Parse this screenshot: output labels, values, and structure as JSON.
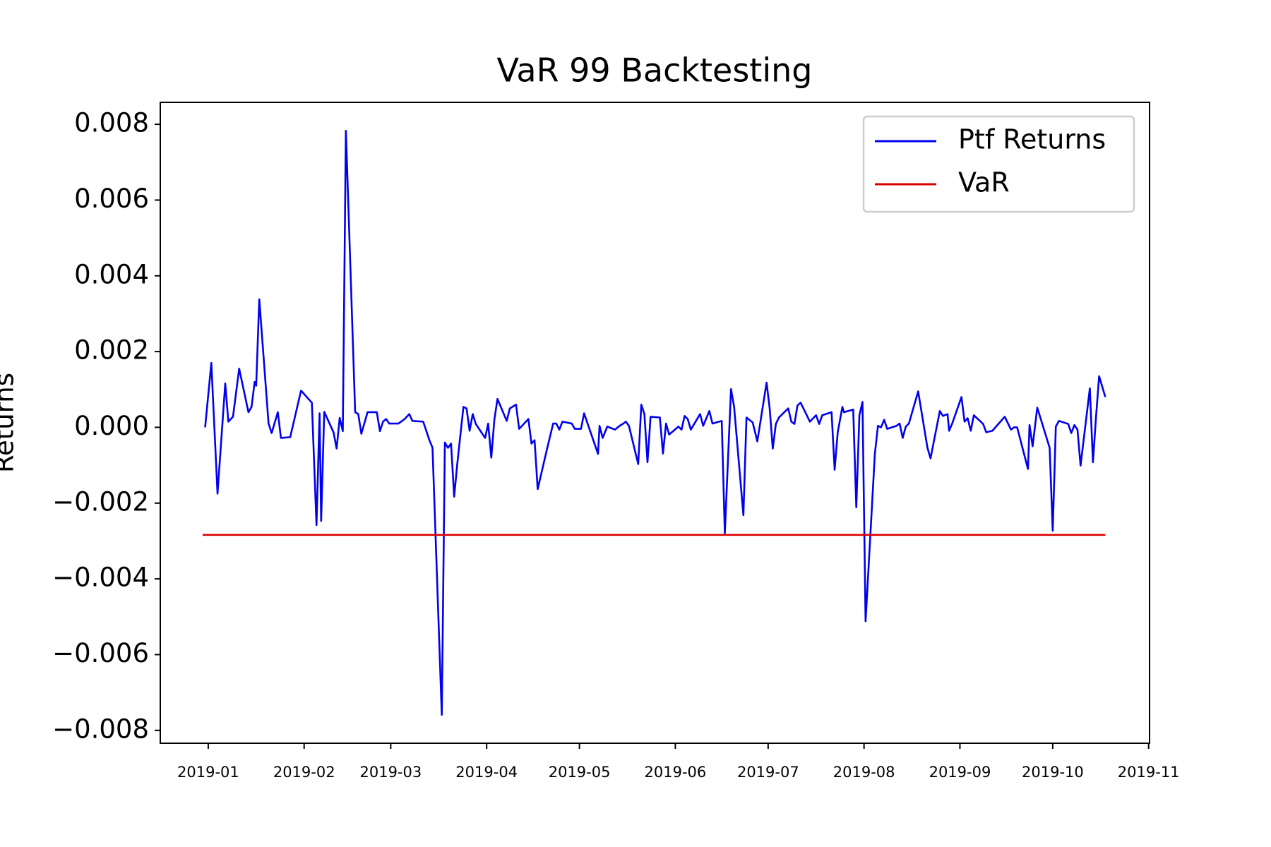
{
  "chart_data": {
    "type": "line",
    "title": "VaR 99 Backtesting",
    "y_label": "Returns",
    "xlim": [
      -15.5,
      304.3
    ],
    "xticks": [
      {
        "value": 0,
        "label": "2019-01"
      },
      {
        "value": 31,
        "label": "2019-02"
      },
      {
        "value": 59,
        "label": "2019-03"
      },
      {
        "value": 90,
        "label": "2019-04"
      },
      {
        "value": 120,
        "label": "2019-05"
      },
      {
        "value": 151,
        "label": "2019-06"
      },
      {
        "value": 181,
        "label": "2019-07"
      },
      {
        "value": 212,
        "label": "2019-08"
      },
      {
        "value": 243,
        "label": "2019-09"
      },
      {
        "value": 273,
        "label": "2019-10"
      },
      {
        "value": 304,
        "label": "2019-11"
      }
    ],
    "ylim": [
      -0.00834,
      0.00858
    ],
    "yticks": [
      {
        "value": -0.008,
        "label": "−0.008"
      },
      {
        "value": -0.006,
        "label": "−0.006"
      },
      {
        "value": -0.004,
        "label": "−0.004"
      },
      {
        "value": -0.002,
        "label": "−0.002"
      },
      {
        "value": 0,
        "label": "0.000"
      },
      0.002,
      0.004,
      0.006,
      0.008
    ],
    "legend": "upper right",
    "series": [
      {
        "name": "Ptf Returns",
        "color": "#0000ee",
        "x": [
          -1,
          1,
          3,
          5.5,
          6.5,
          8,
          10,
          13,
          14,
          15,
          15.5,
          16.5,
          19.5,
          20.5,
          22.5,
          23.5,
          26.5,
          30,
          33.5,
          35,
          36,
          36.5,
          37.5,
          40.5,
          41.5,
          42.5,
          43.5,
          44.5,
          47.5,
          48.5,
          49.5,
          51.5,
          54.5,
          55.5,
          56.5,
          57.5,
          58.5,
          61.5,
          63.5,
          65,
          66,
          69.5,
          71.5,
          72.5,
          75.5,
          76.5,
          77.5,
          78.5,
          79.5,
          80.5,
          82.5,
          83.5,
          84.5,
          85.5,
          86.5,
          89.5,
          90.5,
          91.5,
          92.5,
          93.5,
          96.5,
          97.5,
          99.5,
          100.5,
          103.5,
          104.5,
          105.5,
          106.5,
          109.5,
          111.5,
          112.5,
          113.5,
          114.5,
          117.5,
          118.5,
          120.5,
          121.5,
          126,
          126.5,
          127.5,
          129,
          131.5,
          133,
          134,
          135,
          136,
          139,
          140,
          141,
          142,
          143,
          146,
          147,
          148,
          149,
          152,
          153,
          154,
          155,
          156,
          159,
          160,
          162,
          163,
          166,
          167,
          169,
          170,
          173,
          174,
          176,
          177.5,
          180.5,
          181.5,
          182.5,
          183.5,
          184.5,
          187.5,
          188.5,
          189.5,
          190.5,
          191.5,
          194.5,
          196.5,
          197.5,
          198.5,
          201.5,
          202.5,
          203.5,
          205,
          205.5,
          208.5,
          209.5,
          210.5,
          211.5,
          212.5,
          215.5,
          216.5,
          217.5,
          218.5,
          219.5,
          222.5,
          223.5,
          224.5,
          225.5,
          226.5,
          229.5,
          232.5,
          233.5,
          236.5,
          237.5,
          239,
          239.5,
          240.5,
          243.5,
          244.5,
          245.5,
          246.5,
          247.5,
          250.5,
          251.5,
          253.5,
          257.5,
          259.5,
          260.5,
          261.5,
          265,
          265.5,
          266.5,
          268,
          272,
          273,
          274,
          275,
          278,
          279,
          280,
          281,
          282,
          285,
          286,
          287,
          288,
          290
        ],
        "values": [
          0,
          0.0017,
          -0.00175,
          0.00116,
          0.00015,
          0.00028,
          0.00155,
          0.0004,
          0.00054,
          0.0012,
          0.0011,
          0.00338,
          0.0001,
          -0.00015,
          0.0004,
          -0.00028,
          -0.00026,
          0.00097,
          0.00065,
          -0.00258,
          0.00037,
          -0.00247,
          0.00041,
          -0.00013,
          -0.00056,
          0.00025,
          -0.0001,
          0.00783,
          0.0004,
          0.00035,
          -0.00017,
          0.0004,
          0.0004,
          -0.0001,
          0.00015,
          0.00022,
          0.0001,
          0.0001,
          0.00022,
          0.00035,
          0.00017,
          0.00015,
          -0.00034,
          -0.00054,
          -0.00759,
          -0.0004,
          -0.00054,
          -0.00043,
          -0.00183,
          -0.00097,
          0.00054,
          0.0005,
          -9e-05,
          0.00035,
          9e-05,
          -0.00028,
          0.0001,
          -0.0008,
          0.0002,
          0.00075,
          0.00017,
          0.0005,
          0.0006,
          -4e-05,
          0.00022,
          -0.00043,
          -0.00034,
          -0.00163,
          -0.00058,
          0.0001,
          0.0001,
          -6e-05,
          0.00015,
          0.0001,
          -4e-05,
          -4e-05,
          0.00037,
          -0.0007,
          4e-05,
          -0.00028,
          2e-05,
          -6e-05,
          4e-05,
          9e-05,
          0.00015,
          4e-05,
          -0.00097,
          0.0006,
          0.00035,
          -0.00092,
          0.00028,
          0.00026,
          -0.00069,
          0.0001,
          -0.00019,
          2e-05,
          -6e-05,
          0.0003,
          0.00022,
          -6e-05,
          0.00035,
          4e-05,
          0.00043,
          0.0001,
          0.00017,
          -0.0028,
          0.00101,
          0.00054,
          -0.00232,
          0.00026,
          0.00013,
          -0.00037,
          0.00118,
          0.0005,
          -0.00056,
          9e-05,
          0.00026,
          0.0005,
          0.00015,
          9e-05,
          0.00058,
          0.00065,
          0.00015,
          0.00032,
          9e-05,
          0.00032,
          0.0004,
          -0.00112,
          -0.00013,
          0.00054,
          0.0004,
          0.00047,
          -0.00211,
          0.00032,
          0.00067,
          -0.00512,
          -0.0007,
          4e-05,
          0,
          0.0002,
          -4e-05,
          4e-05,
          0.0001,
          -0.00028,
          2e-05,
          0.0001,
          0.00095,
          -0.00054,
          -0.00082,
          0.00043,
          0.0003,
          0.00035,
          -9e-05,
          0.0001,
          0.0008,
          0.00015,
          0.00024,
          -9e-05,
          0.00032,
          9e-05,
          -0.00013,
          -9e-05,
          0.00028,
          -6e-05,
          0,
          0,
          -0.0011,
          6e-05,
          -0.0005,
          0.00052,
          -0.00054,
          -0.00273,
          2e-05,
          0.00017,
          9e-05,
          -0.00015,
          6e-05,
          -6e-05,
          -0.00101,
          0.00103,
          -0.00092,
          0.00028,
          0.00135,
          0.0008
        ]
      },
      {
        "name": "VaR",
        "color": "#dd0000",
        "x": [
          -1.8,
          290
        ],
        "values": [
          -0.00284,
          -0.00284
        ]
      }
    ]
  }
}
